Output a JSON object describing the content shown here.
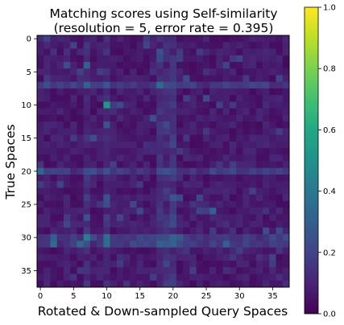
{
  "chart_data": {
    "type": "heatmap",
    "title_line1": "Matching scores using Self-similarity",
    "title_line2": "(resolution = 5, error rate = 0.395)",
    "xlabel": "Rotated & Down-sampled Query Spaces",
    "ylabel": "True Spaces",
    "rows": 38,
    "cols": 38,
    "x_ticks": [
      0,
      5,
      10,
      15,
      20,
      25,
      30,
      35
    ],
    "y_ticks": [
      0,
      5,
      10,
      15,
      20,
      25,
      30,
      35
    ],
    "colorbar": {
      "min": 0.0,
      "max": 1.0,
      "ticks": [
        0.0,
        0.2,
        0.4,
        0.6,
        0.8,
        1.0
      ],
      "tick_labels": [
        "0.0",
        "0.2",
        "0.4",
        "0.6",
        "0.8",
        "1.0"
      ],
      "colormap": "viridis"
    },
    "highlights": [
      {
        "row": 10,
        "col": 10,
        "value": 0.52
      },
      {
        "row": 30,
        "col": 7,
        "value": 0.42
      },
      {
        "row": 30,
        "col": 10,
        "value": 0.35
      },
      {
        "row": 20,
        "col": 0,
        "value": 0.33
      },
      {
        "row": 26,
        "col": 26,
        "value": 0.3
      },
      {
        "row": 31,
        "col": 18,
        "value": 0.3
      },
      {
        "row": 4,
        "col": 7,
        "value": 0.3
      },
      {
        "row": 31,
        "col": 19,
        "value": 0.28
      }
    ],
    "bright_rows": [
      30,
      31,
      20,
      7
    ],
    "bright_cols": [
      18,
      19,
      20,
      7,
      10
    ],
    "background_value": 0.07
  }
}
